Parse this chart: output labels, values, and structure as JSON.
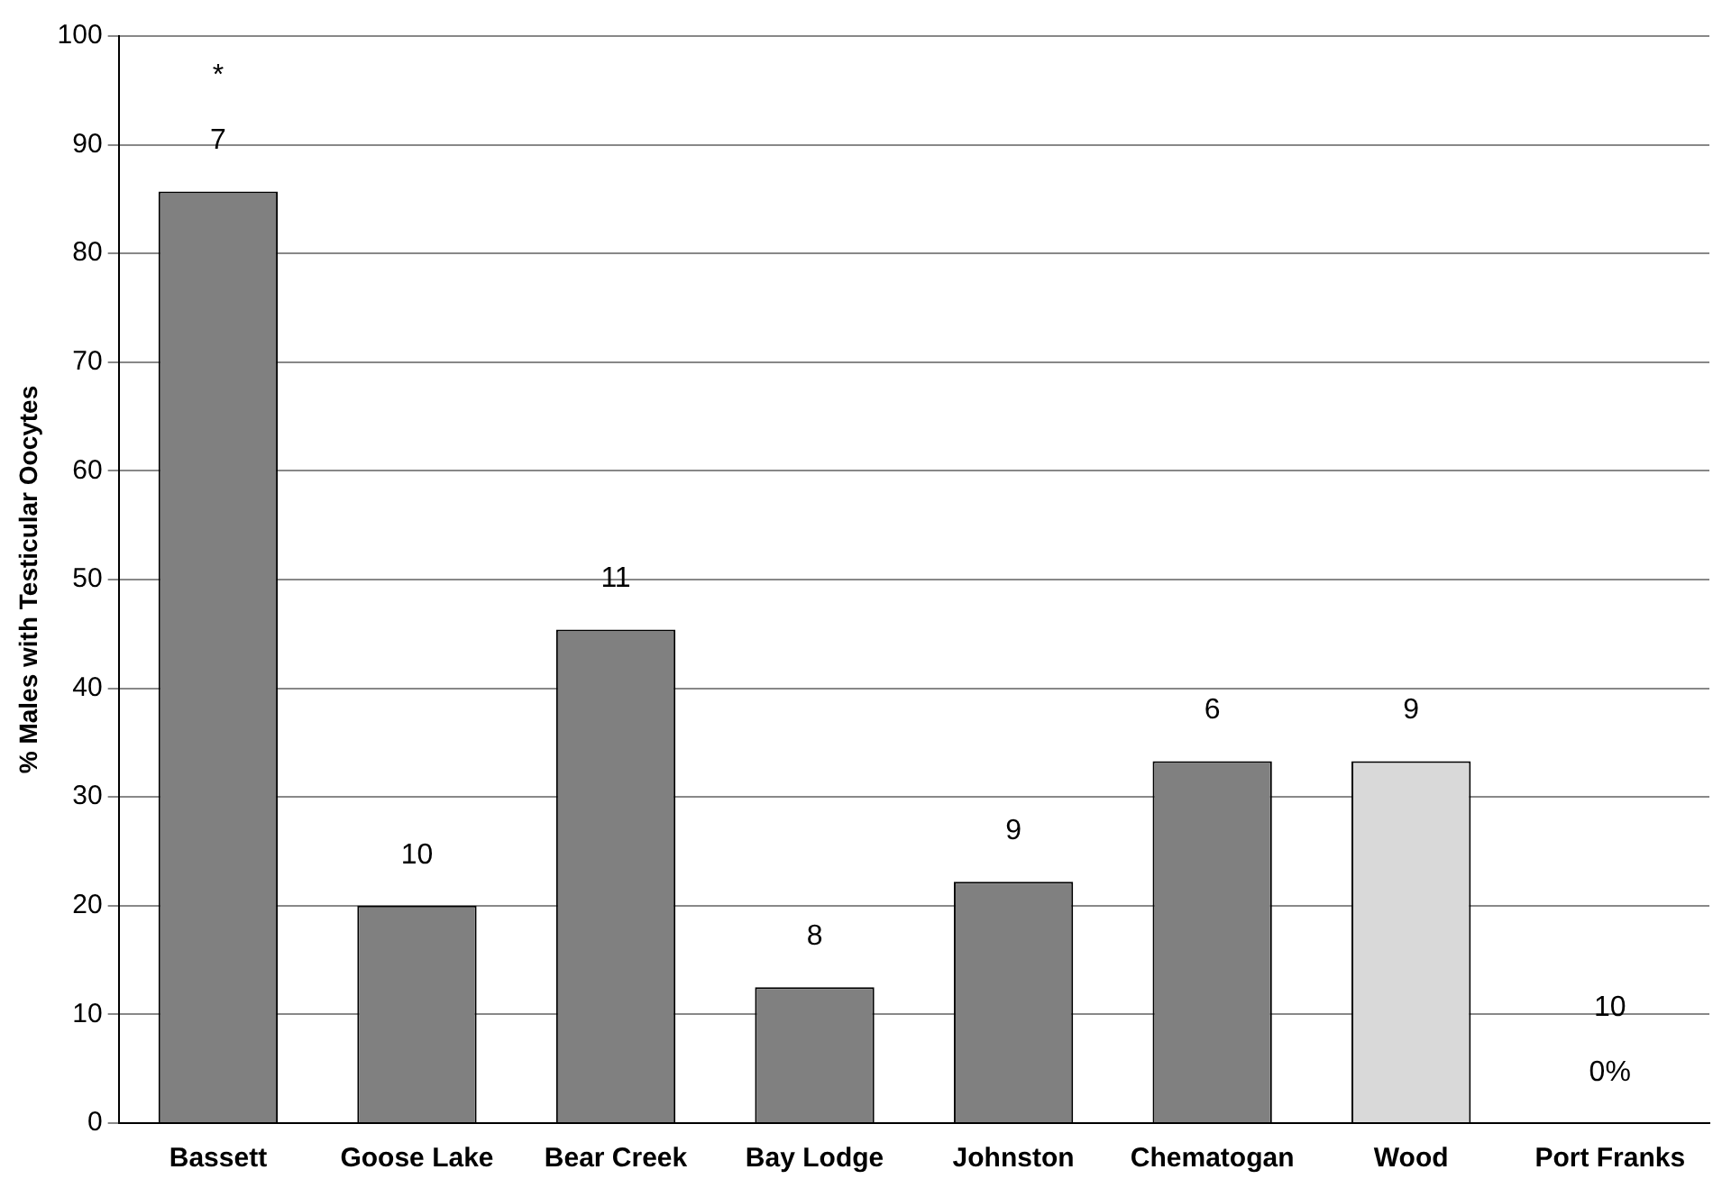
{
  "chart_data": {
    "type": "bar",
    "ylabel": "% Males with Testicular Oocytes",
    "categories": [
      "Bassett",
      "Goose Lake",
      "Bear Creek",
      "Bay Lodge",
      "Johnston",
      "Chematogan",
      "Wood",
      "Port Franks"
    ],
    "values": [
      85.7,
      20,
      45.4,
      12.5,
      22.2,
      33.3,
      33.3,
      0
    ],
    "colors": [
      "#808080",
      "#808080",
      "#808080",
      "#808080",
      "#808080",
      "#808080",
      "#d9d9d9",
      "#808080"
    ],
    "annotations": [
      "7",
      "*",
      "10",
      "11",
      "8",
      "9",
      "6",
      "9",
      "0%",
      "10"
    ],
    "ylim": [
      0,
      100
    ],
    "yticks": [
      0,
      10,
      20,
      30,
      40,
      50,
      60,
      70,
      80,
      90,
      100
    ],
    "grid": "y",
    "legend": false
  }
}
